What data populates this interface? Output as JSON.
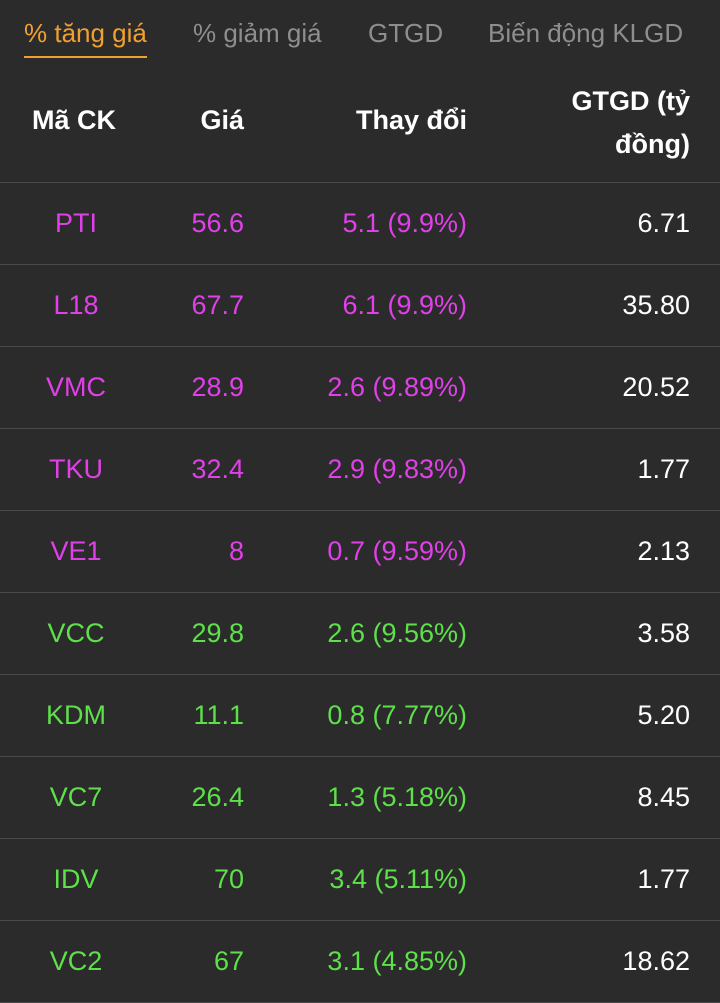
{
  "tabs": [
    {
      "label": "% tăng giá",
      "active": true
    },
    {
      "label": "% giảm giá",
      "active": false
    },
    {
      "label": "GTGD",
      "active": false
    },
    {
      "label": "Biến động KLGD",
      "active": false
    }
  ],
  "table": {
    "headers": {
      "ma": "Mã CK",
      "gia": "Giá",
      "thaydoi": "Thay đổi",
      "gtgd_line1": "GTGD (tỷ",
      "gtgd_line2": "đồng)"
    },
    "colors": {
      "ceiling": "#e040e8",
      "up": "#5ee04a",
      "value": "#ffffff",
      "active_tab": "#f0a030"
    },
    "rows": [
      {
        "ma": "PTI",
        "gia": "56.6",
        "thaydoi": "5.1 (9.9%)",
        "gtgd": "6.71",
        "status": "ceiling"
      },
      {
        "ma": "L18",
        "gia": "67.7",
        "thaydoi": "6.1 (9.9%)",
        "gtgd": "35.80",
        "status": "ceiling"
      },
      {
        "ma": "VMC",
        "gia": "28.9",
        "thaydoi": "2.6 (9.89%)",
        "gtgd": "20.52",
        "status": "ceiling"
      },
      {
        "ma": "TKU",
        "gia": "32.4",
        "thaydoi": "2.9 (9.83%)",
        "gtgd": "1.77",
        "status": "ceiling"
      },
      {
        "ma": "VE1",
        "gia": "8",
        "thaydoi": "0.7 (9.59%)",
        "gtgd": "2.13",
        "status": "ceiling"
      },
      {
        "ma": "VCC",
        "gia": "29.8",
        "thaydoi": "2.6 (9.56%)",
        "gtgd": "3.58",
        "status": "up"
      },
      {
        "ma": "KDM",
        "gia": "11.1",
        "thaydoi": "0.8 (7.77%)",
        "gtgd": "5.20",
        "status": "up"
      },
      {
        "ma": "VC7",
        "gia": "26.4",
        "thaydoi": "1.3 (5.18%)",
        "gtgd": "8.45",
        "status": "up"
      },
      {
        "ma": "IDV",
        "gia": "70",
        "thaydoi": "3.4 (5.11%)",
        "gtgd": "1.77",
        "status": "up"
      },
      {
        "ma": "VC2",
        "gia": "67",
        "thaydoi": "3.1 (4.85%)",
        "gtgd": "18.62",
        "status": "up"
      }
    ]
  }
}
